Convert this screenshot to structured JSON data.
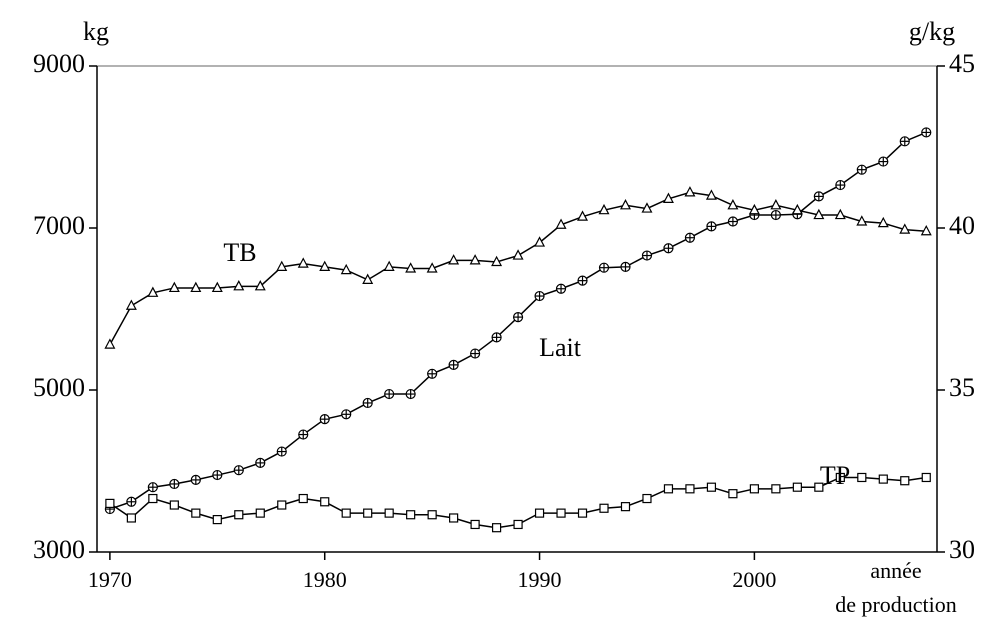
{
  "chart_data": {
    "type": "line",
    "ylabel": "kg",
    "y2label": "g/kg",
    "xlabel": [
      "année",
      "de production"
    ],
    "x": [
      1970,
      1971,
      1972,
      1973,
      1974,
      1975,
      1976,
      1977,
      1978,
      1979,
      1980,
      1981,
      1982,
      1983,
      1984,
      1985,
      1986,
      1987,
      1988,
      1989,
      1990,
      1991,
      1992,
      1993,
      1994,
      1995,
      1996,
      1997,
      1998,
      1999,
      2000,
      2001,
      2002,
      2003,
      2004,
      2005,
      2006,
      2007,
      2008
    ],
    "xlim": [
      1969.4,
      2008.5
    ],
    "xticks": [
      1970,
      1980,
      1990,
      2000
    ],
    "ylim": [
      3000,
      9000
    ],
    "yticks": [
      3000,
      5000,
      7000,
      9000
    ],
    "y2lim": [
      30,
      45
    ],
    "y2ticks": [
      30,
      35,
      40,
      45
    ],
    "series": [
      {
        "name": "Lait",
        "color": "#000000",
        "marker": "circle-cross",
        "axis": "y",
        "values": [
          3530,
          3620,
          3800,
          3840,
          3890,
          3950,
          4010,
          4100,
          4240,
          4450,
          4640,
          4700,
          4840,
          4950,
          4950,
          5200,
          5310,
          5450,
          5650,
          5900,
          6160,
          6250,
          6350,
          6510,
          6520,
          6660,
          6750,
          6880,
          7020,
          7080,
          7160,
          7160,
          7170,
          7390,
          7530,
          7720,
          7820,
          8070,
          8180
        ]
      },
      {
        "name": "TB",
        "color": "#000000",
        "marker": "triangle",
        "axis": "y2",
        "values": [
          36.4,
          37.6,
          38.0,
          38.15,
          38.15,
          38.15,
          38.2,
          38.2,
          38.8,
          38.9,
          38.8,
          38.7,
          38.4,
          38.8,
          38.75,
          38.75,
          39.0,
          39.0,
          38.95,
          39.15,
          39.55,
          40.1,
          40.35,
          40.55,
          40.7,
          40.6,
          40.9,
          41.1,
          41.0,
          40.7,
          40.55,
          40.7,
          40.55,
          40.4,
          40.4,
          40.2,
          40.15,
          39.95,
          39.9
        ]
      },
      {
        "name": "TP",
        "color": "#000000",
        "marker": "square",
        "axis": "y2",
        "values": [
          31.5,
          31.05,
          31.65,
          31.45,
          31.2,
          31.0,
          31.15,
          31.2,
          31.45,
          31.65,
          31.55,
          31.2,
          31.2,
          31.2,
          31.15,
          31.15,
          31.05,
          30.85,
          30.75,
          30.85,
          31.2,
          31.2,
          31.2,
          31.35,
          31.4,
          31.65,
          31.95,
          31.95,
          32.0,
          31.8,
          31.95,
          31.95,
          32.0,
          32.0,
          32.3,
          32.3,
          32.25,
          32.2,
          32.3
        ]
      }
    ]
  }
}
